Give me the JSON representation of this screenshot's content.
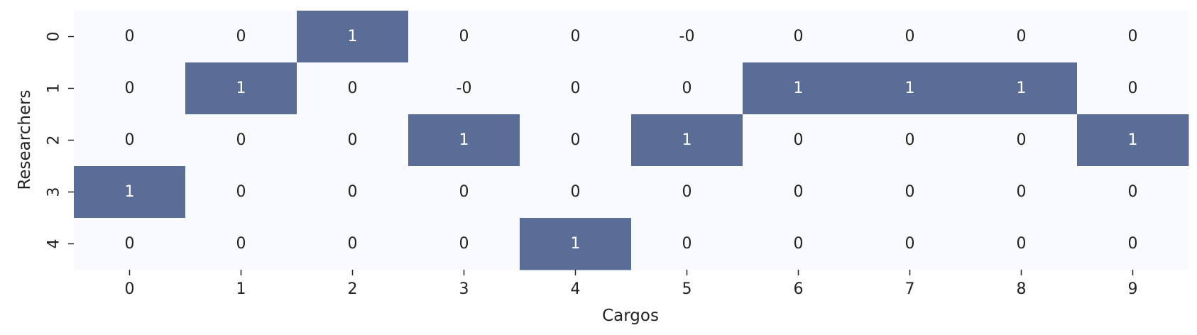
{
  "chart_data": {
    "type": "heatmap",
    "title": "",
    "xlabel": "Cargos",
    "ylabel": "Researchers",
    "x_ticks": [
      "0",
      "1",
      "2",
      "3",
      "4",
      "5",
      "6",
      "7",
      "8",
      "9"
    ],
    "y_ticks": [
      "0",
      "1",
      "2",
      "3",
      "4"
    ],
    "cell_labels": [
      [
        "0",
        "0",
        "1",
        "0",
        "0",
        "-0",
        "0",
        "0",
        "0",
        "0"
      ],
      [
        "0",
        "1",
        "0",
        "-0",
        "0",
        "0",
        "1",
        "1",
        "1",
        "0"
      ],
      [
        "0",
        "0",
        "0",
        "1",
        "0",
        "1",
        "0",
        "0",
        "0",
        "1"
      ],
      [
        "1",
        "0",
        "0",
        "0",
        "0",
        "0",
        "0",
        "0",
        "0",
        "0"
      ],
      [
        "0",
        "0",
        "0",
        "0",
        "1",
        "0",
        "0",
        "0",
        "0",
        "0"
      ]
    ],
    "values": [
      [
        0,
        0,
        1,
        0,
        0,
        0,
        0,
        0,
        0,
        0
      ],
      [
        0,
        1,
        0,
        0,
        0,
        0,
        1,
        1,
        1,
        0
      ],
      [
        0,
        0,
        0,
        1,
        0,
        1,
        0,
        0,
        0,
        1
      ],
      [
        1,
        0,
        0,
        0,
        0,
        0,
        0,
        0,
        0,
        0
      ],
      [
        0,
        0,
        0,
        0,
        1,
        0,
        0,
        0,
        0,
        0
      ]
    ],
    "value_range": [
      0,
      1
    ],
    "colors": {
      "low": "#f8fafe",
      "high": "#5a6d96",
      "text_on_low": "#222222",
      "text_on_high": "#ffffff"
    },
    "colorbar": false,
    "grid": false,
    "legend": "none"
  }
}
